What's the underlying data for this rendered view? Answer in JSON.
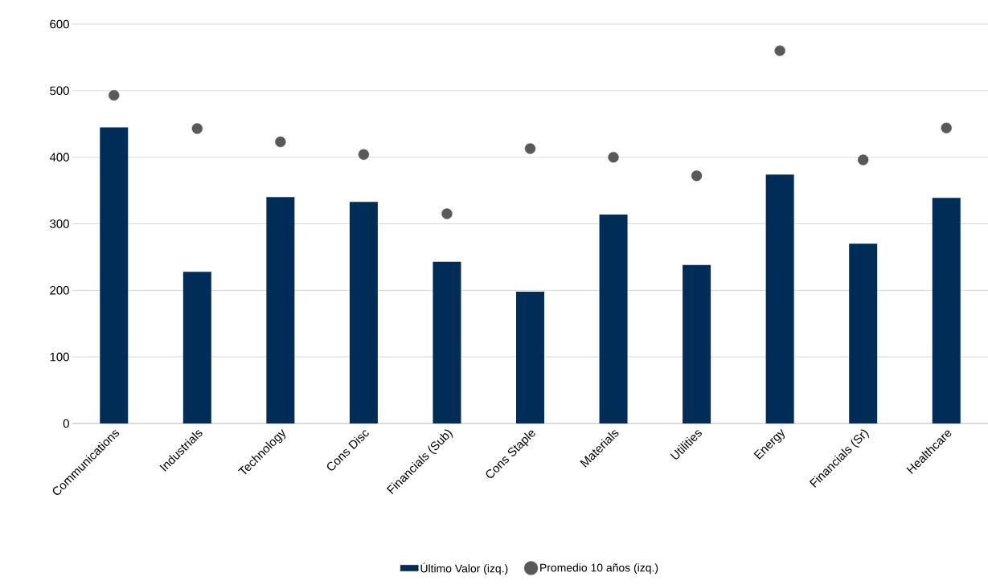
{
  "chart_data": {
    "type": "bar",
    "categories": [
      "Communications",
      "Industrials",
      "Technology",
      "Cons Disc",
      "Financials (Sub)",
      "Cons Staple",
      "Materials",
      "Utilities",
      "Energy",
      "Financials (Sr)",
      "Healthcare"
    ],
    "series": [
      {
        "name": "Último Valor (izq.)",
        "color": "#002d57",
        "values": [
          445,
          228,
          340,
          333,
          243,
          198,
          314,
          238,
          374,
          270,
          339
        ]
      },
      {
        "name": "Promedio 10 años (izq.)",
        "type": "scatter",
        "color": "#595959",
        "values": [
          493,
          443,
          423,
          404,
          315,
          413,
          400,
          372,
          560,
          396,
          444
        ]
      }
    ],
    "ylim": [
      0,
      600
    ],
    "yticks": [
      0,
      100,
      200,
      300,
      400,
      500,
      600
    ],
    "grid": "y",
    "legend": "bottom"
  }
}
